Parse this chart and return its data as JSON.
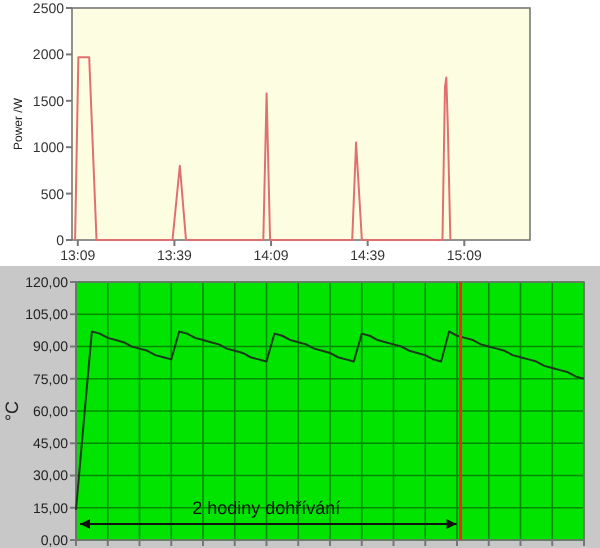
{
  "chart_data": [
    {
      "type": "line",
      "ylabel": "Power /W",
      "xlim": [
        13.12,
        15.49
      ],
      "ylim": [
        0,
        2500
      ],
      "yticks": [
        0,
        500,
        1000,
        1500,
        2000,
        2500
      ],
      "xticks": [
        {
          "value": 13.15,
          "label": "13:09"
        },
        {
          "value": 13.65,
          "label": "13:39"
        },
        {
          "value": 14.15,
          "label": "14:09"
        },
        {
          "value": 14.65,
          "label": "14:39"
        },
        {
          "value": 15.15,
          "label": "15:09"
        }
      ],
      "grid": false,
      "marker": "none",
      "line_style": "solid",
      "series": [
        {
          "color": "#e07070",
          "x": [
            13.136,
            13.153,
            13.209,
            13.247,
            13.64,
            13.678,
            13.71,
            14.11,
            14.127,
            14.145,
            14.57,
            14.59,
            14.62,
            15.037,
            15.05,
            15.057,
            15.065,
            15.078
          ],
          "values": [
            0,
            1970,
            1970,
            0,
            0,
            800,
            0,
            0,
            1580,
            0,
            0,
            1050,
            0,
            0,
            1650,
            1750,
            1200,
            0
          ]
        }
      ]
    },
    {
      "type": "line",
      "ylabel": "°C",
      "ylim": [
        0,
        120
      ],
      "categories": [
        null,
        null,
        null,
        null,
        null,
        null,
        null,
        null,
        null,
        null,
        null,
        null,
        null,
        null,
        null,
        null,
        null,
        null,
        null,
        null,
        null,
        null,
        null,
        null,
        null,
        null,
        null,
        null,
        null,
        null,
        null,
        null,
        null,
        null,
        null,
        null,
        null,
        null,
        null,
        null,
        null,
        null,
        null,
        null,
        null,
        null,
        null,
        null,
        null,
        null,
        null,
        null,
        null,
        null,
        null,
        null,
        null,
        null,
        null,
        null,
        null,
        null,
        null,
        null,
        null
      ],
      "yticks": [
        {
          "value": 0,
          "label": "0,00"
        },
        {
          "value": 15,
          "label": "15,00"
        },
        {
          "value": 30,
          "label": "30,00"
        },
        {
          "value": 45,
          "label": "45,00"
        },
        {
          "value": 60,
          "label": "60,00"
        },
        {
          "value": 75,
          "label": "75,00"
        },
        {
          "value": 90,
          "label": "90,00"
        },
        {
          "value": 105,
          "label": "105,00"
        },
        {
          "value": 120,
          "label": "120,00"
        }
      ],
      "grid": true,
      "marker": "none",
      "line_style": "solid",
      "series": [
        {
          "color": "#1a3a1a",
          "values": [
            14,
            56,
            97,
            96,
            94,
            93,
            92,
            90,
            89,
            88,
            86,
            85,
            84,
            97,
            96,
            94,
            93,
            92,
            91,
            89,
            88,
            87,
            85,
            84,
            83,
            96,
            95,
            93,
            92,
            91,
            89,
            88,
            87,
            85,
            84,
            83,
            96,
            95,
            93,
            92,
            91,
            90,
            88,
            87,
            86,
            84,
            83,
            97,
            95,
            94,
            93,
            91,
            90,
            89,
            88,
            86,
            85,
            84,
            83,
            81,
            80,
            79,
            78,
            76,
            75
          ]
        }
      ],
      "annotations": [
        "2 hodiny dohřívání"
      ]
    }
  ]
}
